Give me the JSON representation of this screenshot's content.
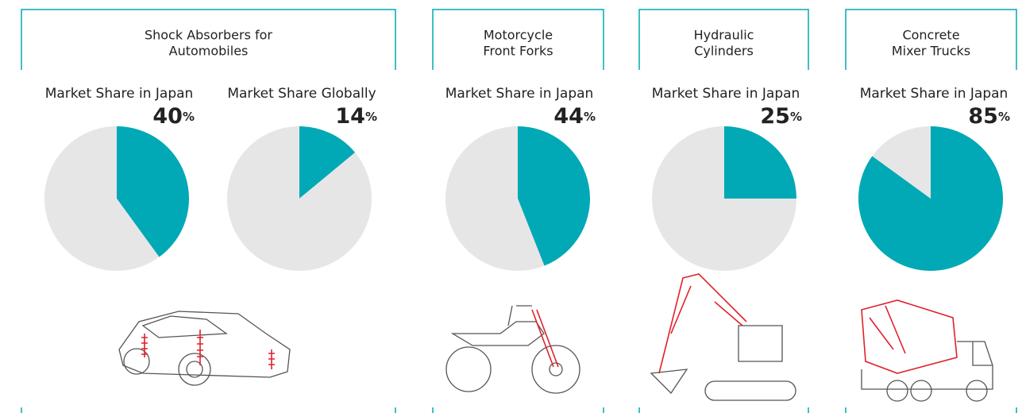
{
  "groups": [
    {
      "title": [
        "Shock Absorbers for",
        "Automobiles"
      ]
    },
    {
      "title": [
        "Motorcycle",
        "Front Forks"
      ]
    },
    {
      "title": [
        "Hydraulic",
        "Cylinders"
      ]
    },
    {
      "title": [
        "Concrete",
        "Mixer Trucks"
      ]
    }
  ],
  "chart_data": [
    {
      "type": "pie",
      "title": "Market Share in Japan",
      "values": [
        40,
        60
      ],
      "unit": "%",
      "colors": [
        "#00a9b5",
        "#e6e6e6"
      ]
    },
    {
      "type": "pie",
      "title": "Market Share Globally",
      "values": [
        14,
        86
      ],
      "unit": "%",
      "colors": [
        "#00a9b5",
        "#e6e6e6"
      ]
    },
    {
      "type": "pie",
      "title": "Market Share in Japan",
      "values": [
        44,
        56
      ],
      "unit": "%",
      "colors": [
        "#00a9b5",
        "#e6e6e6"
      ]
    },
    {
      "type": "pie",
      "title": "Market Share in Japan",
      "values": [
        25,
        75
      ],
      "unit": "%",
      "colors": [
        "#00a9b5",
        "#e6e6e6"
      ]
    },
    {
      "type": "pie",
      "title": "Market Share in Japan",
      "values": [
        85,
        15
      ],
      "unit": "%",
      "colors": [
        "#00a9b5",
        "#e6e6e6"
      ]
    }
  ]
}
